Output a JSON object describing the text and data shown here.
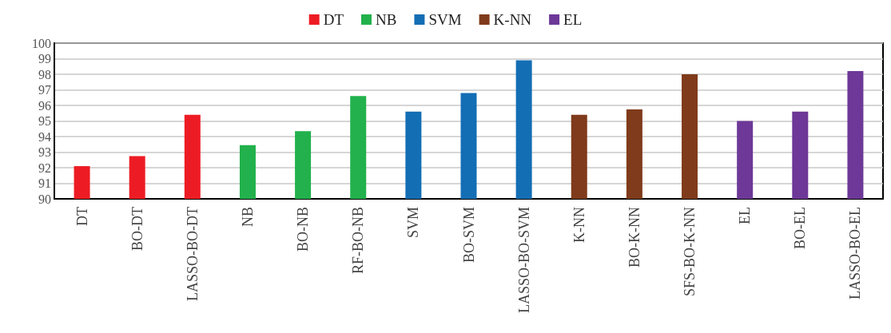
{
  "chart_data": {
    "type": "bar",
    "categories": [
      "DT",
      "BO-DT",
      "LASSO-BO-DT",
      "NB",
      "BO-NB",
      "RF-BO-NB",
      "SVM",
      "BO-SVM",
      "LASSO-BO-SVM",
      "K-NN",
      "BO-K-NN",
      "SFS-BO-K-NN",
      "EL",
      "BO-EL",
      "LASSO-BO-EL"
    ],
    "series": [
      {
        "name": "DT",
        "color": "#ed1c24",
        "values": [
          92.1,
          92.75,
          95.4,
          null,
          null,
          null,
          null,
          null,
          null,
          null,
          null,
          null,
          null,
          null,
          null
        ]
      },
      {
        "name": "NB",
        "color": "#22b14c",
        "values": [
          null,
          null,
          null,
          93.45,
          94.35,
          96.6,
          null,
          null,
          null,
          null,
          null,
          null,
          null,
          null,
          null
        ]
      },
      {
        "name": "SVM",
        "color": "#146eb4",
        "values": [
          null,
          null,
          null,
          null,
          null,
          null,
          95.6,
          96.8,
          98.9,
          null,
          null,
          null,
          null,
          null,
          null
        ]
      },
      {
        "name": "K-NN",
        "color": "#7f3b1b",
        "values": [
          null,
          null,
          null,
          null,
          null,
          null,
          null,
          null,
          null,
          95.4,
          95.75,
          98.0,
          null,
          null,
          null
        ]
      },
      {
        "name": "EL",
        "color": "#6d3897",
        "values": [
          null,
          null,
          null,
          null,
          null,
          null,
          null,
          null,
          null,
          null,
          null,
          null,
          95.0,
          95.6,
          98.2
        ]
      }
    ],
    "ylim": [
      90,
      100
    ],
    "yticks": [
      90,
      91,
      92,
      93,
      94,
      95,
      96,
      97,
      98,
      99,
      100
    ],
    "grid": "y",
    "legend": "top"
  }
}
